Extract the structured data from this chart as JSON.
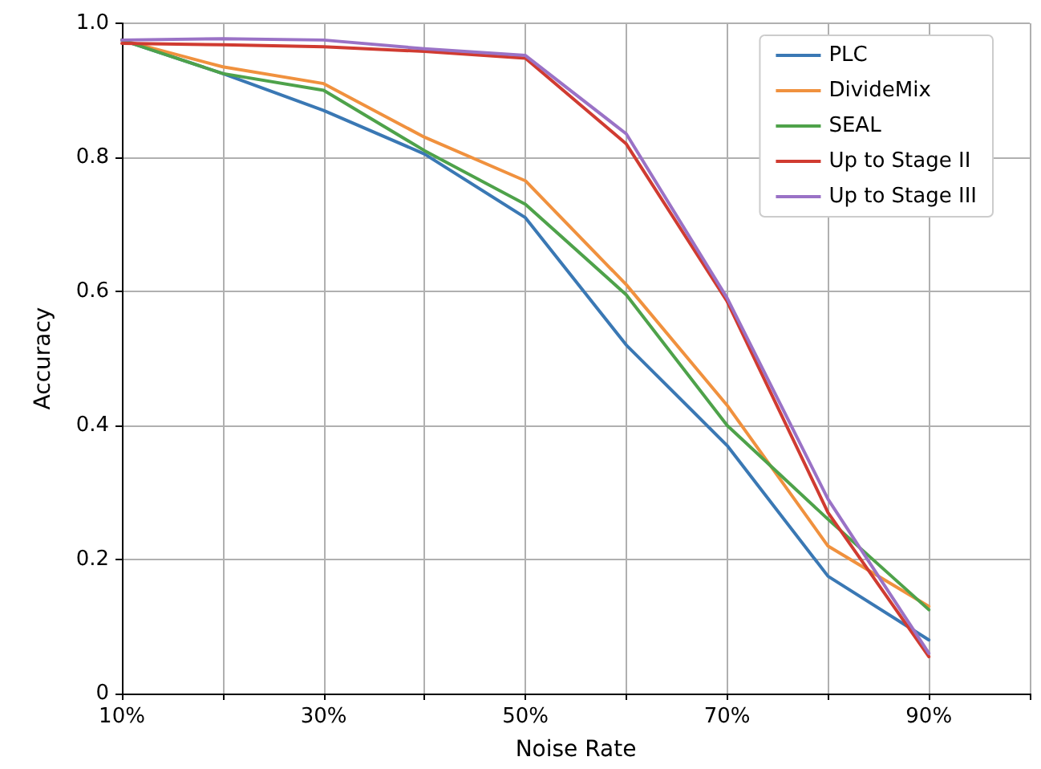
{
  "chart_data": {
    "type": "line",
    "xlabel": "Noise Rate",
    "ylabel": "Accuracy",
    "x": [
      10,
      20,
      30,
      40,
      50,
      60,
      70,
      80,
      90
    ],
    "series": [
      {
        "name": "PLC",
        "color": "#3a78b4",
        "values": [
          0.975,
          0.925,
          0.87,
          0.805,
          0.71,
          0.52,
          0.37,
          0.175,
          0.08
        ]
      },
      {
        "name": "DivideMix",
        "color": "#f0913e",
        "values": [
          0.975,
          0.935,
          0.91,
          0.83,
          0.765,
          0.61,
          0.43,
          0.22,
          0.13
        ]
      },
      {
        "name": "SEAL",
        "color": "#4ea24a",
        "values": [
          0.975,
          0.925,
          0.9,
          0.81,
          0.73,
          0.595,
          0.4,
          0.26,
          0.125
        ]
      },
      {
        "name": "Up to Stage II",
        "color": "#d03b31",
        "values": [
          0.97,
          0.968,
          0.965,
          0.958,
          0.948,
          0.82,
          0.585,
          0.27,
          0.055
        ]
      },
      {
        "name": "Up to Stage III",
        "color": "#9a72c6",
        "values": [
          0.975,
          0.977,
          0.975,
          0.962,
          0.952,
          0.835,
          0.59,
          0.29,
          0.06
        ]
      }
    ],
    "xlim": [
      10,
      100
    ],
    "xticks": [
      {
        "value": 10,
        "label": "10%"
      },
      {
        "value": 20,
        "label": null
      },
      {
        "value": 30,
        "label": "30%"
      },
      {
        "value": 40,
        "label": null
      },
      {
        "value": 50,
        "label": "50%"
      },
      {
        "value": 60,
        "label": null
      },
      {
        "value": 70,
        "label": "70%"
      },
      {
        "value": 80,
        "label": null
      },
      {
        "value": 90,
        "label": "90%"
      },
      {
        "value": 100,
        "label": null
      }
    ],
    "ylim": [
      0,
      1
    ],
    "yticks": [
      0,
      0.2,
      0.4,
      0.6,
      0.8,
      {
        "value": 1,
        "label": "1.0"
      }
    ],
    "grid": true,
    "legend": "top right",
    "marker": "none",
    "line_style": "solid"
  }
}
